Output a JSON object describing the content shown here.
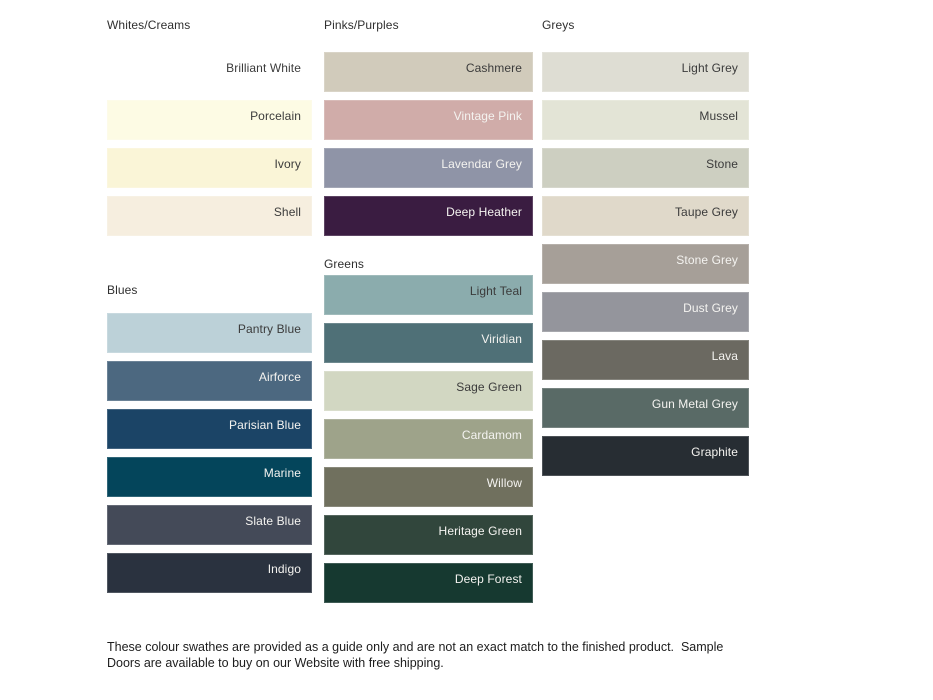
{
  "page": {
    "background": "#ffffff",
    "footer_text": "These colour swathes are provided as a guide only and are not an exact match to the finished product.  Sample Doors are available to buy on our Website with free shipping."
  },
  "palette": {
    "label_dark": "#3b3b3b",
    "label_light": "#f4f3f0"
  },
  "columns": [
    {
      "sections": [
        {
          "title": "Whites/Creams",
          "swatches": [
            {
              "name": "Brilliant White",
              "color": "#ffffff",
              "text": "dark"
            },
            {
              "name": "Porcelain",
              "color": "#fdfbe4",
              "text": "dark"
            },
            {
              "name": "Ivory",
              "color": "#faf5d7",
              "text": "dark"
            },
            {
              "name": "Shell",
              "color": "#f6eedf",
              "text": "dark"
            }
          ]
        },
        {
          "title": "Blues",
          "swatches": [
            {
              "name": "Pantry Blue",
              "color": "#bcd1d8",
              "text": "dark"
            },
            {
              "name": "Airforce",
              "color": "#4c6880",
              "text": "light"
            },
            {
              "name": "Parisian Blue",
              "color": "#1b4466",
              "text": "light"
            },
            {
              "name": "Marine",
              "color": "#04455b",
              "text": "light"
            },
            {
              "name": "Slate Blue",
              "color": "#444a58",
              "text": "light"
            },
            {
              "name": "Indigo",
              "color": "#2a323f",
              "text": "light"
            }
          ]
        }
      ]
    },
    {
      "sections": [
        {
          "title": "Pinks/Purples",
          "swatches": [
            {
              "name": "Cashmere",
              "color": "#d1cbbb",
              "text": "dark"
            },
            {
              "name": "Vintage Pink",
              "color": "#d0aca9",
              "text": "light"
            },
            {
              "name": "Lavendar Grey",
              "color": "#8f94a7",
              "text": "light"
            },
            {
              "name": "Deep Heather",
              "color": "#3a1c41",
              "text": "light"
            }
          ]
        },
        {
          "title": "Greens",
          "swatches": [
            {
              "name": "Light Teal",
              "color": "#8bacad",
              "text": "dark"
            },
            {
              "name": "Viridian",
              "color": "#4f7077",
              "text": "light"
            },
            {
              "name": "Sage Green",
              "color": "#d2d7c2",
              "text": "dark"
            },
            {
              "name": "Cardamom",
              "color": "#9ea38a",
              "text": "light"
            },
            {
              "name": "Willow",
              "color": "#70705e",
              "text": "light"
            },
            {
              "name": "Heritage Green",
              "color": "#31463c",
              "text": "light"
            },
            {
              "name": "Deep Forest",
              "color": "#163930",
              "text": "light"
            }
          ]
        }
      ]
    },
    {
      "sections": [
        {
          "title": "Greys",
          "swatches": [
            {
              "name": "Light Grey",
              "color": "#deddd3",
              "text": "dark"
            },
            {
              "name": "Mussel",
              "color": "#e3e4d6",
              "text": "dark"
            },
            {
              "name": "Stone",
              "color": "#cdcfc1",
              "text": "dark"
            },
            {
              "name": "Taupe Grey",
              "color": "#e0d9ca",
              "text": "dark"
            },
            {
              "name": "Stone Grey",
              "color": "#a69f98",
              "text": "light"
            },
            {
              "name": "Dust Grey",
              "color": "#94959c",
              "text": "light"
            },
            {
              "name": "Lava",
              "color": "#6b6961",
              "text": "light"
            },
            {
              "name": "Gun Metal Grey",
              "color": "#596a66",
              "text": "light"
            },
            {
              "name": "Graphite",
              "color": "#272d33",
              "text": "light"
            }
          ]
        }
      ]
    }
  ]
}
